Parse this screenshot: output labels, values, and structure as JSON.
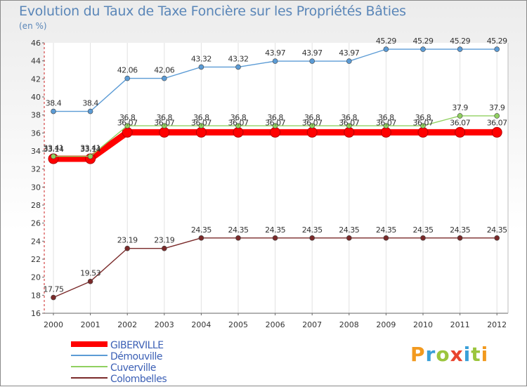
{
  "title": "Evolution du Taux de Taxe Foncière sur les Propriétés Bâties",
  "unit_label": "(en %)",
  "brand": "Proxiti",
  "chart_data": {
    "type": "line",
    "title": "Evolution du Taux de Taxe Foncière sur les Propriétés Bâties",
    "ylabel": "(en %)",
    "xlabel": "",
    "ylim": [
      16,
      46
    ],
    "yticks": [
      16,
      18,
      20,
      22,
      24,
      26,
      28,
      30,
      32,
      34,
      36,
      38,
      40,
      42,
      44,
      46
    ],
    "categories": [
      "2000",
      "2001",
      "2002",
      "2003",
      "2004",
      "2005",
      "2006",
      "2007",
      "2008",
      "2009",
      "2010",
      "2011",
      "2012"
    ],
    "series": [
      {
        "name": "GIBERVILLE",
        "color": "#ff0000",
        "values": [
          33.14,
          33.14,
          36.07,
          36.07,
          36.07,
          36.07,
          36.07,
          36.07,
          36.07,
          36.07,
          36.07,
          36.07,
          36.07
        ]
      },
      {
        "name": "Démouville",
        "color": "#5b9bd5",
        "values": [
          38.4,
          38.4,
          42.06,
          42.06,
          43.32,
          43.32,
          43.97,
          43.97,
          43.97,
          45.29,
          45.29,
          45.29,
          45.29
        ]
      },
      {
        "name": "Cuverville",
        "color": "#90d060",
        "values": [
          33.41,
          33.41,
          36.8,
          36.8,
          36.8,
          36.8,
          36.8,
          36.8,
          36.8,
          36.8,
          36.8,
          37.9,
          37.9
        ]
      },
      {
        "name": "Colombelles",
        "color": "#7a2a2a",
        "values": [
          17.75,
          19.53,
          23.19,
          23.19,
          24.35,
          24.35,
          24.35,
          24.35,
          24.35,
          24.35,
          24.35,
          24.35,
          24.35
        ]
      }
    ],
    "legend_position": "bottom-left"
  }
}
